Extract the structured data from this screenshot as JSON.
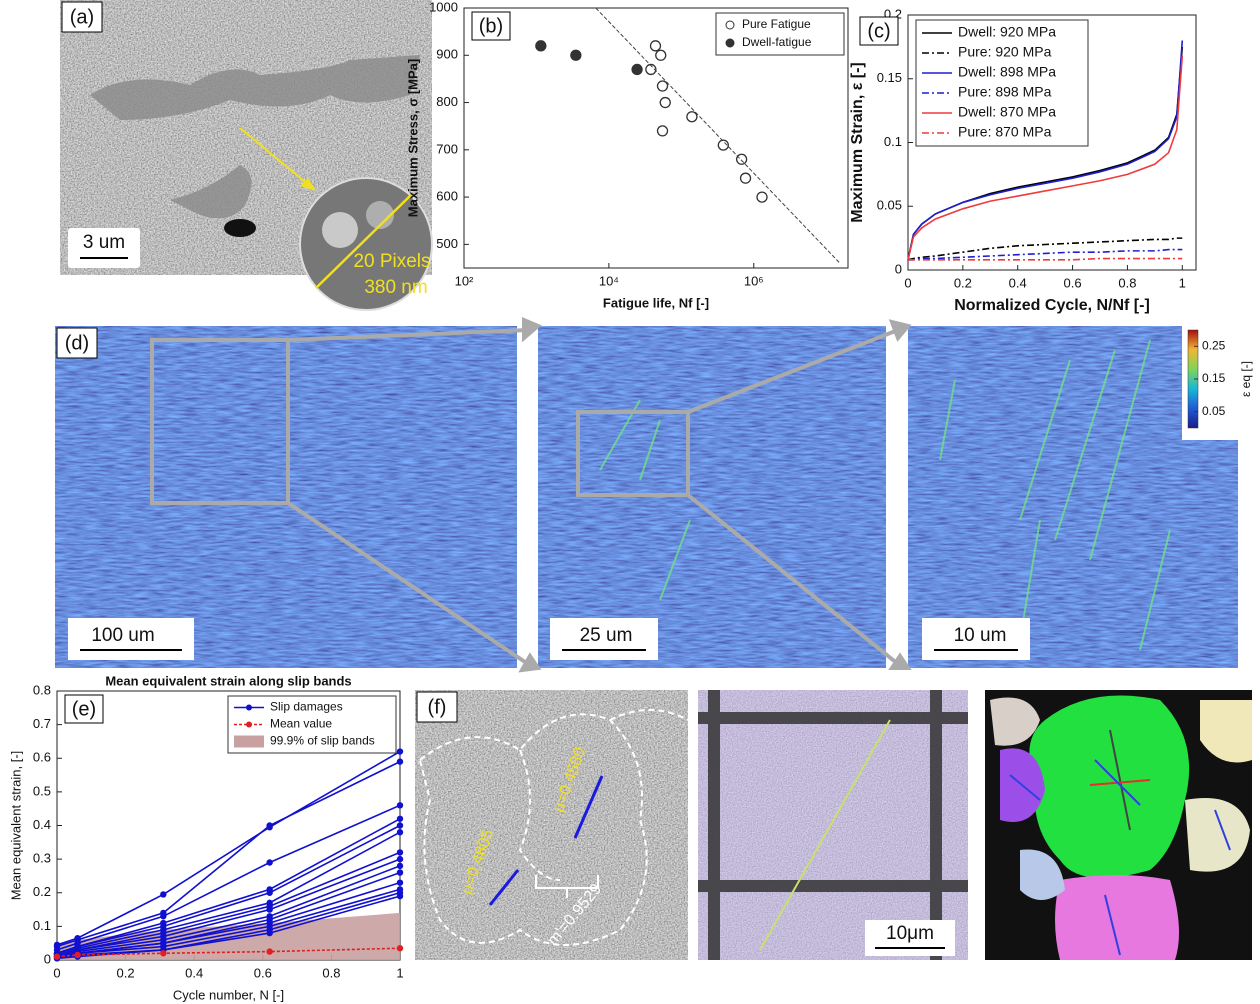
{
  "panels": {
    "a": {
      "label": "(a)",
      "scale_bar": "3 um",
      "inset": [
        "20 Pixels",
        "380 nm"
      ]
    },
    "d": {
      "label": "(d)",
      "scale_bars": [
        "100 um",
        "25 um",
        "10 um"
      ],
      "colorbar": {
        "label": "ε eq [-]",
        "lim": [
          0,
          0.3
        ],
        "ticks": [
          0.05,
          0.15,
          0.25
        ]
      }
    },
    "f": {
      "label": "(f)",
      "annotations": [
        "μ=0.4805",
        "μ=0.4580",
        "m'=0.9529"
      ],
      "scale_bar": "10μm"
    }
  },
  "chart_data": [
    {
      "type": "scatter",
      "panel_label": "(b)",
      "x_label": "Fatigue life, Nf [-]",
      "y_label": "Maximum Stress, σ [MPa]",
      "xlog": true,
      "xlim": [
        100,
        20000000
      ],
      "ylim": [
        450,
        1000
      ],
      "xticks": [
        {
          "value": 100,
          "label": "10²"
        },
        {
          "value": 10000,
          "label": "10⁴"
        },
        {
          "value": 1000000,
          "label": "10⁶"
        }
      ],
      "yticks": [
        500,
        600,
        700,
        800,
        900,
        1000
      ],
      "grid": false,
      "legend": "upper right",
      "series": [
        {
          "name": "Pure Fatigue",
          "color": "#333333",
          "marker": "open",
          "x": [
            44000,
            52000,
            38000,
            55000,
            60000,
            55000,
            140000,
            380000,
            680000,
            770000,
            1300000
          ],
          "y": [
            920,
            900,
            870,
            835,
            800,
            740,
            770,
            710,
            680,
            640,
            600
          ]
        },
        {
          "name": "Dwell-fatigue",
          "color": "#333333",
          "marker": "filled",
          "x": [
            1150,
            3500,
            24500
          ],
          "y": [
            920,
            900,
            870
          ]
        }
      ],
      "trend": {
        "color": "#444444",
        "x": [
          6600,
          15500000
        ],
        "y": [
          1000,
          460
        ]
      }
    },
    {
      "type": "line",
      "panel_label": "(c)",
      "x_label": "Normalized Cycle, N/Nf [-]",
      "y_label": "Maximum Strain, ε [-]",
      "xlim": [
        0,
        1.05
      ],
      "ylim": [
        0,
        0.2
      ],
      "xticks": [
        0,
        0.2,
        0.4,
        0.6,
        0.8,
        1
      ],
      "yticks": [
        0,
        0.05,
        0.1,
        0.15,
        0.2
      ],
      "grid": false,
      "legend": "upper left",
      "x": [
        0,
        0.02,
        0.05,
        0.1,
        0.2,
        0.3,
        0.4,
        0.5,
        0.6,
        0.7,
        0.8,
        0.9,
        0.95,
        0.98,
        1
      ],
      "series": [
        {
          "name": "Dwell: 920 MPa",
          "color": "#000000",
          "linestyle": "solid",
          "values": [
            0.008,
            0.028,
            0.036,
            0.044,
            0.053,
            0.06,
            0.065,
            0.069,
            0.073,
            0.078,
            0.084,
            0.094,
            0.104,
            0.122,
            0.175
          ]
        },
        {
          "name": "Pure: 920 MPa",
          "color": "#000000",
          "linestyle": "dashdot",
          "values": [
            0.008,
            0.009,
            0.01,
            0.011,
            0.014,
            0.017,
            0.019,
            0.02,
            0.021,
            0.022,
            0.023,
            0.024,
            0.024,
            0.025,
            0.025
          ]
        },
        {
          "name": "Dwell: 898 MPa",
          "color": "#1f1fcf",
          "linestyle": "solid",
          "values": [
            0.008,
            0.028,
            0.036,
            0.044,
            0.053,
            0.059,
            0.064,
            0.068,
            0.072,
            0.077,
            0.083,
            0.093,
            0.103,
            0.12,
            0.18
          ]
        },
        {
          "name": "Pure: 898 MPa",
          "color": "#1f1fcf",
          "linestyle": "dashdot",
          "values": [
            0.008,
            0.008,
            0.009,
            0.009,
            0.01,
            0.011,
            0.012,
            0.013,
            0.014,
            0.014,
            0.015,
            0.015,
            0.016,
            0.016,
            0.016
          ]
        },
        {
          "name": "Dwell: 870 MPa",
          "color": "#ee3b3b",
          "linestyle": "solid",
          "values": [
            0.008,
            0.026,
            0.033,
            0.04,
            0.048,
            0.054,
            0.058,
            0.062,
            0.066,
            0.07,
            0.075,
            0.083,
            0.092,
            0.11,
            0.168
          ]
        },
        {
          "name": "Pure: 870 MPa",
          "color": "#ee3b3b",
          "linestyle": "dashdot",
          "values": [
            0.008,
            0.008,
            0.008,
            0.008,
            0.008,
            0.008,
            0.008,
            0.008,
            0.008,
            0.009,
            0.009,
            0.009,
            0.009,
            0.009,
            0.009
          ]
        }
      ]
    },
    {
      "type": "line",
      "panel_label": "(e)",
      "title": "Mean equivalent strain along slip bands",
      "x_label": "Cycle number, N [-]",
      "y_label": "Mean equivalent strain, [-]",
      "xlim": [
        0,
        1
      ],
      "ylim": [
        0,
        0.8
      ],
      "xticks": [
        0,
        0.2,
        0.4,
        0.6,
        0.8,
        1
      ],
      "yticks": [
        0,
        0.1,
        0.2,
        0.3,
        0.4,
        0.5,
        0.6,
        0.7,
        0.8
      ],
      "grid": false,
      "legend": "upper right",
      "x": [
        0,
        0.06,
        0.31,
        0.62,
        1
      ],
      "series": [
        {
          "name": "99.9% of slip bands",
          "color": "#c9a0a0",
          "kind": "area",
          "values": [
            0.05,
            0.06,
            0.09,
            0.11,
            0.14
          ]
        },
        {
          "name": "Slip damages",
          "color": "#1010d0",
          "linestyle": "solid",
          "marker": true,
          "lines": [
            [
              0.045,
              0.065,
              0.195,
              0.395,
              0.62
            ],
            [
              0.04,
              0.06,
              0.14,
              0.4,
              0.59
            ],
            [
              0.03,
              0.05,
              0.13,
              0.29,
              0.46
            ],
            [
              0.02,
              0.04,
              0.11,
              0.21,
              0.42
            ],
            [
              0.02,
              0.04,
              0.1,
              0.2,
              0.4
            ],
            [
              0.02,
              0.035,
              0.09,
              0.17,
              0.38
            ],
            [
              0.015,
              0.03,
              0.08,
              0.16,
              0.32
            ],
            [
              0.015,
              0.03,
              0.07,
              0.15,
              0.3
            ],
            [
              0.01,
              0.025,
              0.06,
              0.13,
              0.28
            ],
            [
              0.01,
              0.02,
              0.05,
              0.12,
              0.26
            ],
            [
              0.01,
              0.02,
              0.05,
              0.11,
              0.23
            ],
            [
              0.01,
              0.02,
              0.04,
              0.1,
              0.21
            ],
            [
              0.005,
              0.015,
              0.03,
              0.09,
              0.2
            ],
            [
              0.005,
              0.01,
              0.03,
              0.08,
              0.19
            ]
          ]
        },
        {
          "name": "Mean value",
          "color": "#e02020",
          "linestyle": "dotted",
          "marker": true,
          "values": [
            0.01,
            0.015,
            0.02,
            0.025,
            0.035
          ]
        }
      ]
    }
  ]
}
